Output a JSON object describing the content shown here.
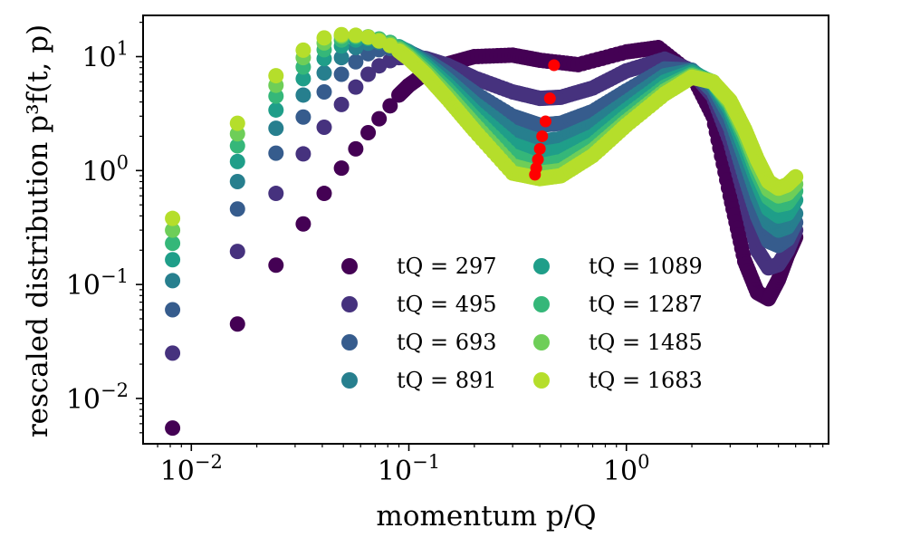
{
  "chart_data": {
    "type": "scatter",
    "xlabel": "momentum p/Q",
    "ylabel": "rescaled distribution p³f(t, p)",
    "xscale": "log",
    "yscale": "log",
    "xlim": [
      0.006,
      8.5
    ],
    "ylim": [
      0.004,
      23
    ],
    "grid": false,
    "legend_position": "center-bottom",
    "legend_columns": 2,
    "x_ticks": [
      {
        "value": 0.01,
        "base": "10",
        "exp": "−2"
      },
      {
        "value": 0.1,
        "base": "10",
        "exp": "−1"
      },
      {
        "value": 1,
        "base": "10",
        "exp": "0"
      }
    ],
    "y_ticks": [
      {
        "value": 0.01,
        "base": "10",
        "exp": "−2"
      },
      {
        "value": 0.1,
        "base": "10",
        "exp": "−1"
      },
      {
        "value": 1,
        "base": "10",
        "exp": "0"
      },
      {
        "value": 10,
        "base": "10",
        "exp": "1"
      }
    ],
    "series": [
      {
        "name": "tQ = 297",
        "color": "#440154",
        "x": [
          0.0082,
          0.0163,
          0.0245,
          0.0327,
          0.0408,
          0.049,
          0.057,
          0.065,
          0.073,
          0.082,
          0.09,
          0.1,
          0.12,
          0.15,
          0.2,
          0.3,
          0.4,
          0.6,
          1.0,
          1.4,
          2.0,
          2.5,
          3.0,
          3.5,
          4.0,
          4.5,
          5.0,
          5.5,
          6.0
        ],
        "y": [
          0.0055,
          0.045,
          0.148,
          0.34,
          0.63,
          1.05,
          1.55,
          2.15,
          2.85,
          3.7,
          4.6,
          5.6,
          7.2,
          8.6,
          10.0,
          10.3,
          9.3,
          8.5,
          11.0,
          12.0,
          7.0,
          3.0,
          0.6,
          0.16,
          0.085,
          0.075,
          0.11,
          0.18,
          0.26
        ]
      },
      {
        "name": "tQ = 495",
        "color": "#46327e",
        "x": [
          0.0082,
          0.0163,
          0.0245,
          0.0327,
          0.0408,
          0.049,
          0.057,
          0.065,
          0.073,
          0.082,
          0.09,
          0.1,
          0.12,
          0.15,
          0.2,
          0.3,
          0.4,
          0.5,
          0.7,
          1.0,
          1.5,
          2.0,
          2.5,
          3.0,
          3.5,
          4.0,
          4.5,
          5.0,
          5.5,
          6.0
        ],
        "y": [
          0.025,
          0.195,
          0.63,
          1.4,
          2.4,
          3.8,
          5.4,
          7.0,
          8.3,
          9.2,
          9.8,
          10.0,
          9.6,
          8.4,
          6.5,
          4.9,
          4.3,
          4.4,
          5.3,
          7.5,
          9.5,
          7.5,
          4.5,
          1.8,
          0.6,
          0.2,
          0.14,
          0.15,
          0.2,
          0.3
        ]
      },
      {
        "name": "tQ = 693",
        "color": "#365c8d",
        "x": [
          0.0082,
          0.0163,
          0.0245,
          0.0327,
          0.0408,
          0.049,
          0.057,
          0.065,
          0.073,
          0.082,
          0.09,
          0.1,
          0.12,
          0.15,
          0.2,
          0.3,
          0.4,
          0.5,
          0.7,
          1.0,
          1.5,
          2.0,
          2.5,
          3.0,
          3.5,
          4.0,
          4.5,
          5.0,
          5.5,
          6.0
        ],
        "y": [
          0.06,
          0.46,
          1.42,
          2.95,
          4.9,
          7.0,
          9.0,
          10.6,
          11.5,
          11.8,
          11.5,
          10.9,
          9.3,
          7.1,
          4.8,
          3.0,
          2.5,
          2.6,
          3.3,
          5.0,
          7.8,
          7.6,
          5.0,
          2.4,
          0.9,
          0.4,
          0.24,
          0.22,
          0.25,
          0.35
        ]
      },
      {
        "name": "tQ = 891",
        "color": "#277f8e",
        "x": [
          0.0082,
          0.0163,
          0.0245,
          0.0327,
          0.0408,
          0.049,
          0.057,
          0.065,
          0.073,
          0.082,
          0.09,
          0.1,
          0.12,
          0.15,
          0.2,
          0.3,
          0.4,
          0.5,
          0.7,
          1.0,
          1.5,
          2.0,
          2.5,
          3.0,
          3.5,
          4.0,
          4.5,
          5.0,
          5.5,
          6.0
        ],
        "y": [
          0.108,
          0.8,
          2.35,
          4.6,
          7.2,
          9.8,
          12.0,
          13.1,
          13.3,
          12.9,
          12.1,
          11.0,
          8.8,
          6.3,
          3.9,
          2.2,
          1.8,
          1.9,
          2.5,
          4.0,
          6.8,
          7.5,
          5.6,
          3.0,
          1.3,
          0.6,
          0.35,
          0.3,
          0.32,
          0.42
        ]
      },
      {
        "name": "tQ = 1089",
        "color": "#1f9e89",
        "x": [
          0.0082,
          0.0163,
          0.0245,
          0.0327,
          0.0408,
          0.049,
          0.057,
          0.065,
          0.073,
          0.082,
          0.09,
          0.1,
          0.12,
          0.15,
          0.2,
          0.3,
          0.4,
          0.5,
          0.7,
          1.0,
          1.5,
          2.0,
          2.5,
          3.0,
          3.5,
          4.0,
          4.5,
          5.0,
          5.5,
          6.0
        ],
        "y": [
          0.165,
          1.2,
          3.4,
          6.4,
          9.6,
          12.4,
          14.0,
          14.4,
          14.1,
          13.3,
          12.2,
          10.8,
          8.3,
          5.7,
          3.3,
          1.7,
          1.4,
          1.5,
          2.0,
          3.4,
          6.0,
          7.3,
          5.9,
          3.4,
          1.6,
          0.8,
          0.46,
          0.4,
          0.42,
          0.55
        ]
      },
      {
        "name": "tQ = 1287",
        "color": "#35b779",
        "x": [
          0.0082,
          0.0163,
          0.0245,
          0.0327,
          0.0408,
          0.049,
          0.057,
          0.065,
          0.073,
          0.082,
          0.09,
          0.1,
          0.12,
          0.15,
          0.2,
          0.3,
          0.4,
          0.5,
          0.7,
          1.0,
          1.5,
          2.0,
          2.5,
          3.0,
          3.5,
          4.0,
          4.5,
          5.0,
          5.5,
          6.0
        ],
        "y": [
          0.23,
          1.65,
          4.5,
          8.1,
          11.5,
          14.0,
          14.9,
          14.9,
          14.3,
          13.3,
          12.0,
          10.4,
          7.8,
          5.2,
          2.9,
          1.35,
          1.1,
          1.2,
          1.7,
          3.0,
          5.4,
          7.0,
          6.0,
          3.7,
          1.9,
          0.95,
          0.58,
          0.5,
          0.52,
          0.66
        ]
      },
      {
        "name": "tQ = 1485",
        "color": "#6ece58",
        "x": [
          0.0082,
          0.0163,
          0.0245,
          0.0327,
          0.0408,
          0.049,
          0.057,
          0.065,
          0.073,
          0.082,
          0.09,
          0.1,
          0.12,
          0.15,
          0.2,
          0.3,
          0.4,
          0.5,
          0.7,
          1.0,
          1.5,
          2.0,
          2.5,
          3.0,
          3.5,
          4.0,
          4.5,
          5.0,
          5.5,
          6.0
        ],
        "y": [
          0.3,
          2.1,
          5.6,
          9.8,
          13.2,
          15.1,
          15.3,
          14.9,
          14.0,
          12.9,
          11.6,
          10.0,
          7.3,
          4.7,
          2.55,
          1.1,
          0.95,
          1.0,
          1.5,
          2.7,
          5.0,
          6.8,
          6.0,
          3.9,
          2.1,
          1.1,
          0.68,
          0.6,
          0.63,
          0.76
        ]
      },
      {
        "name": "tQ = 1683",
        "color": "#b5de2b",
        "x": [
          0.0082,
          0.0163,
          0.0245,
          0.0327,
          0.0408,
          0.049,
          0.057,
          0.065,
          0.073,
          0.082,
          0.09,
          0.1,
          0.12,
          0.15,
          0.2,
          0.3,
          0.4,
          0.5,
          0.7,
          1.0,
          1.5,
          2.0,
          2.5,
          3.0,
          3.5,
          4.0,
          4.5,
          5.0,
          5.5,
          6.0
        ],
        "y": [
          0.38,
          2.6,
          6.8,
          11.4,
          14.6,
          15.6,
          15.4,
          14.8,
          13.7,
          12.5,
          11.2,
          9.6,
          6.9,
          4.3,
          2.25,
          0.95,
          0.85,
          0.9,
          1.35,
          2.5,
          4.7,
          6.6,
          6.0,
          4.1,
          2.3,
          1.25,
          0.8,
          0.7,
          0.75,
          0.88
        ]
      }
    ],
    "minima": {
      "color": "#ff0000",
      "x": [
        0.465,
        0.445,
        0.425,
        0.41,
        0.4,
        0.392,
        0.385,
        0.38
      ],
      "y": [
        8.4,
        4.3,
        2.7,
        2.0,
        1.55,
        1.25,
        1.05,
        0.92
      ]
    }
  }
}
